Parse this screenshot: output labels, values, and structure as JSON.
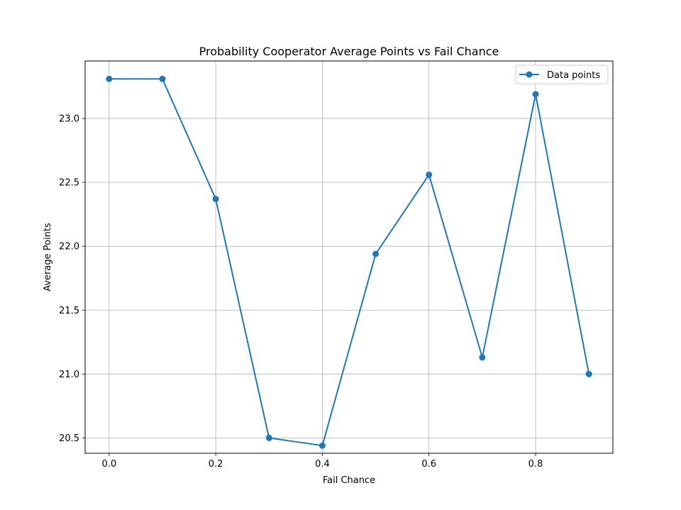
{
  "chart_data": {
    "type": "line",
    "title": "Probability Cooperator Average Points vs Fail Chance",
    "xlabel": "Fail Chance",
    "ylabel": "Average Points",
    "x": [
      0.0,
      0.1,
      0.2,
      0.3,
      0.4,
      0.5,
      0.6,
      0.7,
      0.8,
      0.9
    ],
    "series": [
      {
        "name": "Data points",
        "values": [
          23.31,
          23.31,
          22.37,
          20.5,
          20.44,
          21.94,
          22.56,
          21.13,
          23.19,
          21.0
        ],
        "color": "#1f77b4",
        "marker": "circle"
      }
    ],
    "xlim": [
      -0.045,
      0.945
    ],
    "ylim": [
      20.38,
      23.45
    ],
    "xticks": [
      "0.0",
      "0.2",
      "0.4",
      "0.6",
      "0.8"
    ],
    "xtick_values": [
      0.0,
      0.2,
      0.4,
      0.6,
      0.8
    ],
    "yticks": [
      "20.5",
      "21.0",
      "21.5",
      "22.0",
      "22.5",
      "23.0"
    ],
    "ytick_values": [
      20.5,
      21.0,
      21.5,
      22.0,
      22.5,
      23.0
    ],
    "grid": true,
    "legend": "top-right"
  }
}
